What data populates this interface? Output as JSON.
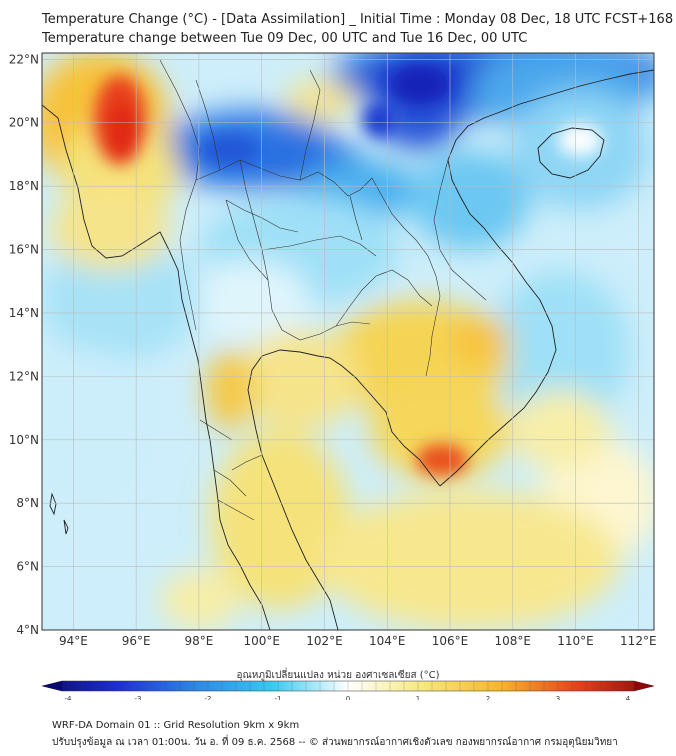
{
  "header": {
    "title_line1": "Temperature Change (°C) - [Data Assimilation] _ Initial Time : Monday 08 Dec, 18 UTC FCST+168",
    "title_line2": "Temperature change between Tue 09 Dec, 00 UTC and Tue 16 Dec, 00 UTC"
  },
  "map": {
    "lon_ticks": [
      94,
      96,
      98,
      100,
      102,
      104,
      106,
      108,
      110,
      112
    ],
    "lat_ticks": [
      4,
      6,
      8,
      10,
      12,
      14,
      16,
      18,
      20,
      22
    ],
    "lon_range": [
      93,
      112.5
    ],
    "lat_range": [
      4,
      22.2
    ],
    "lon_labels": [
      "94°E",
      "96°E",
      "98°E",
      "100°E",
      "102°E",
      "104°E",
      "106°E",
      "108°E",
      "110°E",
      "112°E"
    ],
    "lat_labels": [
      "4°N",
      "6°N",
      "8°N",
      "10°N",
      "12°N",
      "14°N",
      "16°N",
      "18°N",
      "20°N",
      "22°N"
    ],
    "colors": {
      "land_border": "#222222",
      "grid": "#bbbbbb"
    }
  },
  "colorbar": {
    "label": "อุณหภูมิเปลี่ยนแปลง หน่วย องศาเซลเซียส (°C)",
    "range": [
      -4,
      4
    ],
    "ticks": [
      "-4",
      "-3",
      "-2",
      "-1",
      "0",
      "1",
      "2",
      "3",
      "4"
    ],
    "colors": [
      "#0a0a6e",
      "#1e2fd6",
      "#2f86e8",
      "#36c9f0",
      "#ffffff",
      "#f5e87a",
      "#f7b52a",
      "#e8401c",
      "#8a0a0a"
    ]
  },
  "footer": {
    "line1": "WRF-DA Domain 01 :: Grid Resolution 9km x 9km",
    "line2": "ปรับปรุงข้อมูล ณ เวลา 01:00น. วัน อ. ที่ 09 ธ.ค. 2568 -- © ส่วนพยากรณ์อากาศเชิงตัวเลข กองพยากรณ์อากาศ กรมอุตุนิยมวิทยา"
  }
}
